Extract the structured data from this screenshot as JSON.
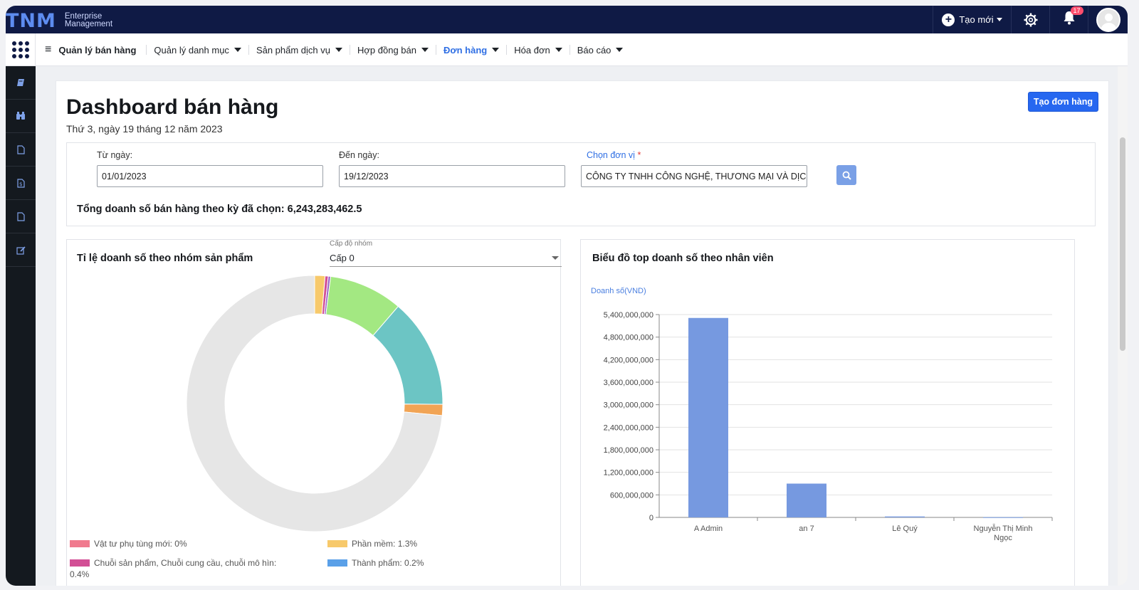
{
  "brand": {
    "mark": "TNM",
    "line1": "Enterprise",
    "line2": "Management"
  },
  "topbar": {
    "create_label": "Tạo mới",
    "notif_count": "17",
    "icons": [
      "plus-icon",
      "gear-icon",
      "bell-icon",
      "avatar-icon"
    ]
  },
  "menu": {
    "title": "Quản lý bán hàng",
    "items": [
      {
        "label": "Quản lý danh mục",
        "active": false
      },
      {
        "label": "Sản phẩm dịch vụ",
        "active": false
      },
      {
        "label": "Hợp đồng bán",
        "active": false
      },
      {
        "label": "Đơn hàng",
        "active": true
      },
      {
        "label": "Hóa đơn",
        "active": false
      },
      {
        "label": "Báo cáo",
        "active": false
      }
    ]
  },
  "sidebar": {
    "icons": [
      "book-icon",
      "binoculars-icon",
      "file-icon",
      "invoice-icon",
      "file-icon",
      "edit-icon"
    ]
  },
  "page": {
    "title": "Dashboard bán hàng",
    "date": "Thứ 3, ngày 19 tháng 12 năm 2023",
    "create_order": "Tạo đơn hàng"
  },
  "filter": {
    "from_label": "Từ ngày:",
    "from_value": "01/01/2023",
    "to_label": "Đến ngày:",
    "to_value": "19/12/2023",
    "unit_label": "Chọn đơn vị",
    "unit_required": "*",
    "unit_value": "CÔNG TY TNHH CÔNG NGHỆ, THƯƠNG MẠI VÀ DỊCH",
    "total_text": "Tổng doanh số bán hàng theo kỳ đã chọn: 6,243,283,462.5"
  },
  "pie_panel": {
    "title": "Tỉ lệ doanh số theo nhóm sản phẩm",
    "select_label": "Cấp độ nhóm",
    "select_value": "Cấp 0",
    "legend": [
      {
        "label": "Vật tư phụ tùng mới: 0%",
        "color": "#f07a8e"
      },
      {
        "label": "Phần mềm: 1.3%",
        "color": "#f7c96b"
      },
      {
        "label": "Chuỗi sản phẩm, Chuỗi cung cầu, chuỗi mô hìn:",
        "color": "#d24f95",
        "extra": "0.4%"
      },
      {
        "label": "Thành phẩm: 0.2%",
        "color": "#5aa0e8"
      }
    ]
  },
  "bar_panel": {
    "title": "Biểu đồ top doanh số theo nhân viên",
    "ylabel": "Doanh số(VND)"
  },
  "chart_data": [
    {
      "type": "pie",
      "title": "Tỉ lệ doanh số theo nhóm sản phẩm",
      "donut": true,
      "slices": [
        {
          "label": "Phần mềm",
          "value": 1.3,
          "color": "#f7c96b"
        },
        {
          "label": "Chuỗi sản phẩm, Chuỗi cung cầu, chuỗi mô hìn",
          "value": 0.4,
          "color": "#d24f95"
        },
        {
          "label": "",
          "value": 0.3,
          "color": "#9a63c8"
        },
        {
          "label": "",
          "value": 9.3,
          "color": "#a3e882"
        },
        {
          "label": "",
          "value": 13.8,
          "color": "#6cc5c4"
        },
        {
          "label": "",
          "value": 1.4,
          "color": "#f1a455"
        },
        {
          "label": "",
          "value": 73.5,
          "color": "#e6e6e6"
        }
      ]
    },
    {
      "type": "bar",
      "title": "Biểu đồ top doanh số theo nhân viên",
      "ylabel": "Doanh số(VND)",
      "categories": [
        "A Admin",
        "an 7",
        "Lê Quý",
        "Nguyễn Thị Minh Ngọc"
      ],
      "category_lines": [
        [
          "A Admin"
        ],
        [
          "an 7"
        ],
        [
          "Lê Quý"
        ],
        [
          "Nguyễn Thị Minh",
          "Ngọc"
        ]
      ],
      "values": [
        5310000000,
        900000000,
        25000000,
        5000000
      ],
      "ylim": [
        0,
        5400000000
      ],
      "yticks": [
        0,
        600000000,
        1200000000,
        1800000000,
        2400000000,
        3000000000,
        3600000000,
        4200000000,
        4800000000,
        5400000000
      ],
      "ytick_labels": [
        "0",
        "600,000,000",
        "1,200,000,000",
        "1,800,000,000",
        "2,400,000,000",
        "3,000,000,000",
        "3,600,000,000",
        "4,200,000,000",
        "4,800,000,000",
        "5,400,000,000"
      ],
      "bar_color": "#7699e0",
      "grid": true
    }
  ]
}
